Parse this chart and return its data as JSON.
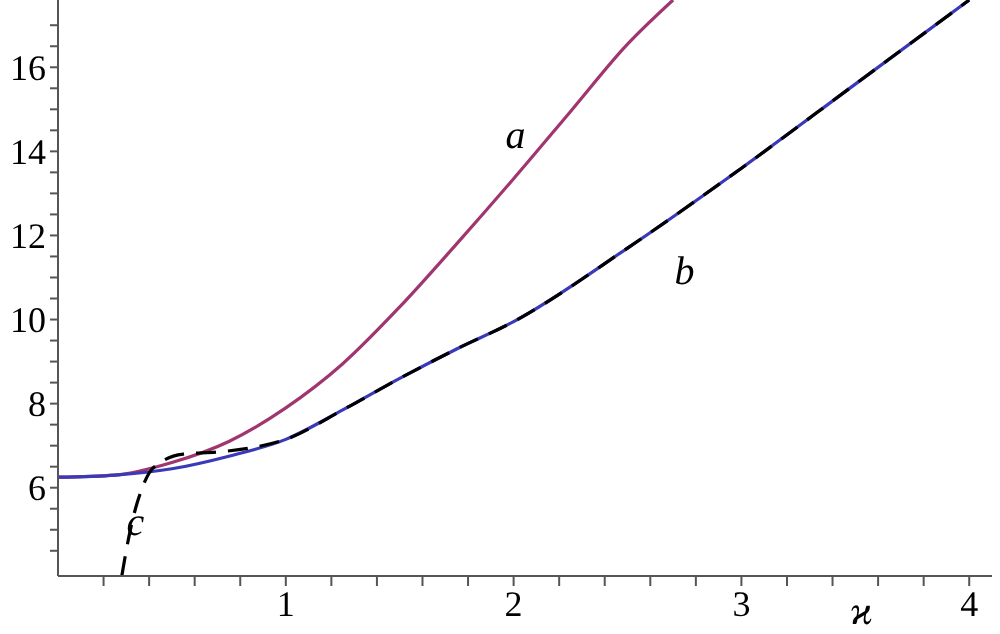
{
  "chart_data": {
    "type": "line",
    "xlabel": "ϰ",
    "xlim": [
      0,
      4.1
    ],
    "ylim": [
      3.9,
      17.6
    ],
    "xticks": [
      {
        "value": 0.2,
        "label": null
      },
      {
        "value": 0.4,
        "label": null
      },
      {
        "value": 0.6,
        "label": null
      },
      {
        "value": 0.8,
        "label": null
      },
      1,
      {
        "value": 1.2,
        "label": null
      },
      {
        "value": 1.4,
        "label": null
      },
      {
        "value": 1.6,
        "label": null
      },
      {
        "value": 1.8,
        "label": null
      },
      2,
      {
        "value": 2.2,
        "label": null
      },
      {
        "value": 2.4,
        "label": null
      },
      {
        "value": 2.6,
        "label": null
      },
      {
        "value": 2.8,
        "label": null
      },
      3,
      {
        "value": 3.2,
        "label": null
      },
      {
        "value": 3.4,
        "label": null
      },
      {
        "value": 3.6,
        "label": null
      },
      {
        "value": 3.8,
        "label": null
      },
      4
    ],
    "yticks": [
      {
        "value": 4.5,
        "label": null
      },
      {
        "value": 5,
        "label": null
      },
      {
        "value": 5.5,
        "label": null
      },
      6,
      {
        "value": 6.5,
        "label": null
      },
      {
        "value": 7,
        "label": null
      },
      {
        "value": 7.5,
        "label": null
      },
      8,
      {
        "value": 8.5,
        "label": null
      },
      {
        "value": 9,
        "label": null
      },
      {
        "value": 9.5,
        "label": null
      },
      10,
      {
        "value": 10.5,
        "label": null
      },
      {
        "value": 11,
        "label": null
      },
      {
        "value": 11.5,
        "label": null
      },
      12,
      {
        "value": 12.5,
        "label": null
      },
      {
        "value": 13,
        "label": null
      },
      {
        "value": 13.5,
        "label": null
      },
      14,
      {
        "value": 14.5,
        "label": null
      },
      {
        "value": 15,
        "label": null
      },
      {
        "value": 15.5,
        "label": null
      },
      16,
      {
        "value": 16.5,
        "label": null
      },
      {
        "value": 17,
        "label": null
      }
    ],
    "grid": false,
    "legend": false,
    "marker": "none",
    "series": [
      {
        "color": "#a0356f",
        "line_style": "solid",
        "x": [
          0,
          0.25,
          0.5,
          0.75,
          1,
          1.25,
          1.5,
          1.75,
          2,
          2.25,
          2.5,
          2.7
        ],
        "values": [
          6.25,
          6.3,
          6.6,
          7.1,
          7.9,
          8.95,
          10.3,
          11.8,
          13.35,
          14.95,
          16.55,
          17.6
        ]
      },
      {
        "color": "#3a3ab8",
        "line_style": "solid",
        "x": [
          0,
          0.25,
          0.5,
          0.75,
          1,
          1.25,
          1.5,
          1.75,
          2,
          2.5,
          3,
          3.5,
          4
        ],
        "values": [
          6.25,
          6.3,
          6.45,
          6.75,
          7.15,
          7.85,
          8.6,
          9.3,
          9.95,
          11.7,
          13.6,
          15.6,
          17.6
        ]
      },
      {
        "color": "#000000",
        "line_style": "dashed",
        "x": [
          0.28,
          0.31,
          0.34,
          0.37,
          0.4,
          0.45,
          0.55,
          0.7,
          0.85,
          1,
          1.25,
          1.5,
          1.75,
          2,
          2.5,
          3,
          3.5,
          4
        ],
        "values": [
          3.9,
          4.8,
          5.5,
          6.0,
          6.35,
          6.6,
          6.8,
          6.85,
          6.95,
          7.15,
          7.85,
          8.6,
          9.3,
          9.95,
          11.7,
          13.6,
          15.6,
          17.6
        ]
      }
    ],
    "annotations": [
      {
        "text": "a",
        "x": 2.14,
        "y": 14.3
      },
      {
        "text": "b",
        "x": 2.75,
        "y": 12.3
      },
      {
        "text": "c",
        "x": 0.34,
        "y": 5.1
      }
    ]
  }
}
